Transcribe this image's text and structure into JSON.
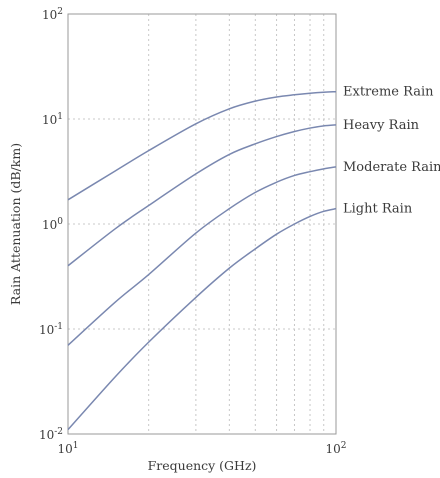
{
  "chart_data": {
    "type": "line",
    "title": "",
    "xlabel": "Frequency (GHz)",
    "ylabel": "Rain Attenuation (dB/km)",
    "xscale": "log",
    "yscale": "log",
    "xlim": [
      10,
      100
    ],
    "ylim": [
      0.01,
      100
    ],
    "grid": true,
    "legend": "none (series labeled at right end of lines)",
    "line_color": "#7a88b0",
    "x_ticks": [
      {
        "base": "10",
        "exp": "1",
        "value": 10
      },
      {
        "base": "10",
        "exp": "2",
        "value": 100
      }
    ],
    "y_ticks": [
      {
        "base": "10",
        "exp": "-2",
        "value": 0.01
      },
      {
        "base": "10",
        "exp": "-1",
        "value": 0.1
      },
      {
        "base": "10",
        "exp": "0",
        "value": 1
      },
      {
        "base": "10",
        "exp": "1",
        "value": 10
      },
      {
        "base": "10",
        "exp": "2",
        "value": 100
      }
    ],
    "x": [
      10,
      15,
      20,
      30,
      40,
      50,
      60,
      70,
      80,
      90,
      100
    ],
    "series": [
      {
        "name": "Extreme Rain",
        "values": [
          1.7,
          3.2,
          5.0,
          9.0,
          12.5,
          14.8,
          16.2,
          17.0,
          17.6,
          18.0,
          18.2
        ]
      },
      {
        "name": "Heavy Rain",
        "values": [
          0.4,
          0.9,
          1.5,
          3.0,
          4.6,
          5.8,
          6.8,
          7.6,
          8.2,
          8.6,
          8.8
        ]
      },
      {
        "name": "Moderate Rain",
        "values": [
          0.07,
          0.18,
          0.33,
          0.82,
          1.4,
          2.0,
          2.5,
          2.9,
          3.15,
          3.35,
          3.5
        ]
      },
      {
        "name": "Light Rain",
        "values": [
          0.011,
          0.035,
          0.075,
          0.2,
          0.38,
          0.58,
          0.8,
          1.0,
          1.18,
          1.32,
          1.4
        ]
      }
    ]
  }
}
